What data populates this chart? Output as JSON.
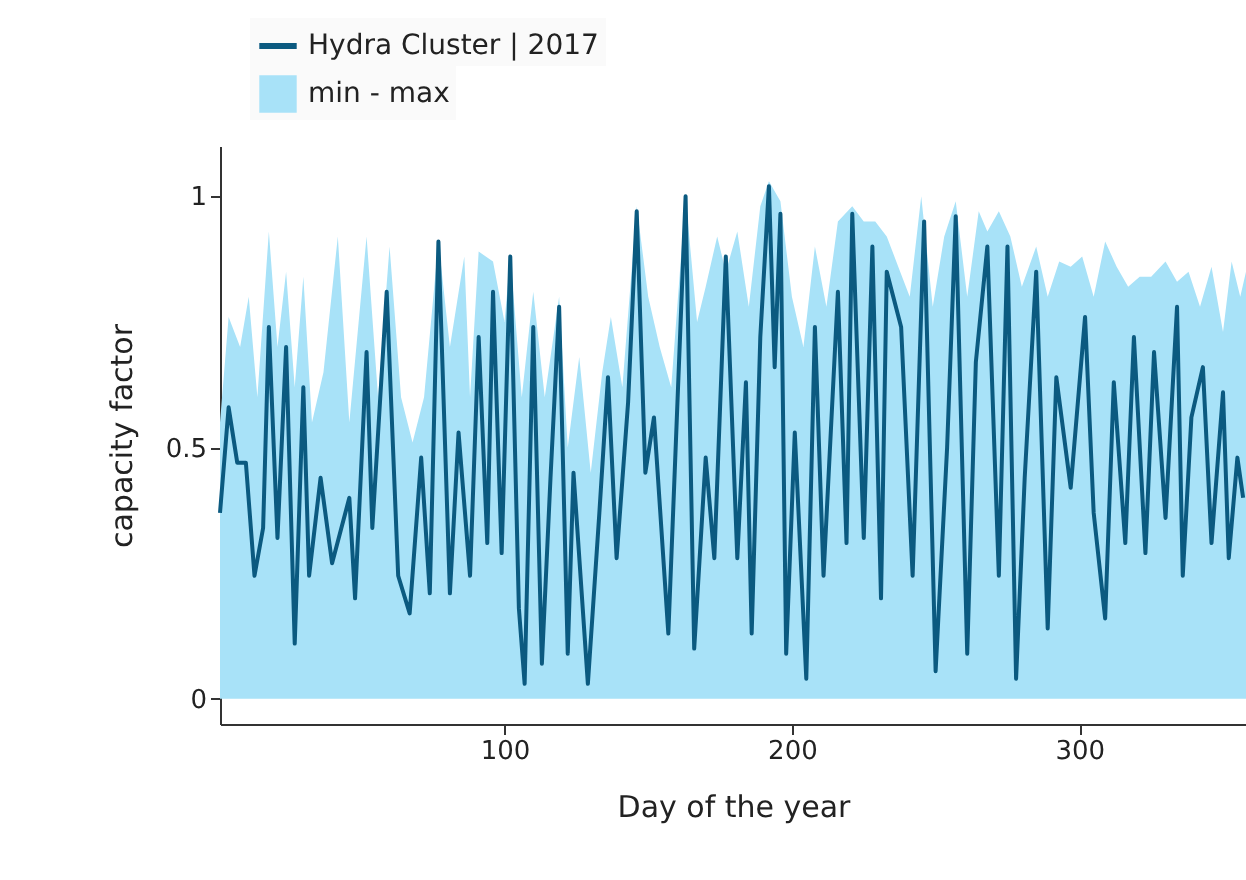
{
  "chart_data": {
    "type": "line",
    "xlabel": "Day of the year",
    "ylabel": "capacity factor",
    "xlim": [
      1,
      358
    ],
    "ylim": [
      -0.05,
      1.1
    ],
    "xticks": [
      100,
      200,
      300
    ],
    "yticks": [
      0,
      0.5,
      1
    ],
    "grid": false,
    "legend": "top left",
    "series": [
      {
        "name": "min - max",
        "type": "area",
        "color": "#a8e2f8",
        "x": [
          1,
          4,
          8,
          11,
          14,
          18,
          21,
          24,
          27,
          30,
          33,
          37,
          42,
          46,
          52,
          56,
          60,
          64,
          68,
          72,
          77,
          81,
          86,
          88,
          91,
          96,
          100,
          102,
          106,
          110,
          114,
          119,
          122,
          126,
          130,
          134,
          137,
          141,
          146,
          150,
          154,
          158,
          163,
          167,
          170,
          174,
          177,
          181,
          185,
          189,
          192,
          196,
          200,
          204,
          208,
          212,
          216,
          221,
          225,
          229,
          233,
          237,
          241,
          245,
          249,
          253,
          257,
          261,
          265,
          268,
          272,
          276,
          280,
          285,
          289,
          293,
          297,
          301,
          305,
          309,
          313,
          317,
          321,
          325,
          330,
          334,
          338,
          342,
          346,
          350,
          353,
          356,
          358
        ],
        "values": [
          0.55,
          0.76,
          0.7,
          0.8,
          0.6,
          0.93,
          0.7,
          0.85,
          0.62,
          0.84,
          0.55,
          0.65,
          0.92,
          0.55,
          0.92,
          0.6,
          0.9,
          0.6,
          0.51,
          0.6,
          0.91,
          0.7,
          0.88,
          0.6,
          0.89,
          0.87,
          0.75,
          0.88,
          0.6,
          0.81,
          0.6,
          0.8,
          0.5,
          0.68,
          0.45,
          0.65,
          0.76,
          0.62,
          0.98,
          0.8,
          0.7,
          0.62,
          1.0,
          0.75,
          0.82,
          0.92,
          0.85,
          0.93,
          0.78,
          0.98,
          1.03,
          0.99,
          0.8,
          0.7,
          0.9,
          0.78,
          0.95,
          0.98,
          0.95,
          0.95,
          0.92,
          0.86,
          0.8,
          1.0,
          0.78,
          0.92,
          0.99,
          0.8,
          0.97,
          0.93,
          0.97,
          0.92,
          0.82,
          0.9,
          0.8,
          0.87,
          0.86,
          0.88,
          0.8,
          0.91,
          0.86,
          0.82,
          0.84,
          0.84,
          0.87,
          0.83,
          0.85,
          0.78,
          0.86,
          0.73,
          0.87,
          0.8,
          0.85
        ]
      },
      {
        "name": "Hydra Cluster | 2017",
        "color": "#0b5a80",
        "x": [
          1,
          4,
          7,
          10,
          13,
          16,
          18,
          21,
          24,
          27,
          30,
          32,
          36,
          40,
          46,
          48,
          52,
          54,
          59,
          63,
          67,
          71,
          74,
          77,
          81,
          84,
          88,
          91,
          94,
          96,
          99,
          102,
          105,
          107,
          110,
          113,
          116,
          119,
          122,
          124,
          129,
          133,
          136,
          139,
          143,
          146,
          149,
          152,
          157,
          163,
          166,
          170,
          173,
          177,
          181,
          184,
          186,
          189,
          192,
          194,
          196,
          198,
          201,
          205,
          208,
          211,
          216,
          219,
          221,
          225,
          228,
          231,
          233,
          238,
          242,
          246,
          250,
          254,
          257,
          261,
          264,
          268,
          272,
          275,
          278,
          281,
          285,
          289,
          292,
          297,
          302,
          305,
          309,
          312,
          316,
          319,
          323,
          326,
          330,
          334,
          336,
          339,
          343,
          346,
          350,
          352,
          355,
          357
        ],
        "values": [
          0.37,
          0.58,
          0.47,
          0.47,
          0.245,
          0.34,
          0.74,
          0.32,
          0.7,
          0.11,
          0.62,
          0.245,
          0.44,
          0.27,
          0.4,
          0.2,
          0.69,
          0.34,
          0.81,
          0.245,
          0.17,
          0.48,
          0.21,
          0.91,
          0.21,
          0.53,
          0.245,
          0.72,
          0.31,
          0.81,
          0.29,
          0.88,
          0.18,
          0.03,
          0.74,
          0.07,
          0.44,
          0.78,
          0.09,
          0.45,
          0.03,
          0.37,
          0.64,
          0.28,
          0.59,
          0.97,
          0.45,
          0.56,
          0.13,
          1.0,
          0.1,
          0.48,
          0.28,
          0.88,
          0.28,
          0.63,
          0.13,
          0.72,
          1.02,
          0.66,
          0.965,
          0.09,
          0.53,
          0.04,
          0.74,
          0.245,
          0.81,
          0.31,
          0.965,
          0.32,
          0.9,
          0.2,
          0.85,
          0.74,
          0.245,
          0.95,
          0.055,
          0.5,
          0.96,
          0.09,
          0.67,
          0.9,
          0.245,
          0.9,
          0.04,
          0.44,
          0.85,
          0.14,
          0.64,
          0.42,
          0.76,
          0.37,
          0.16,
          0.63,
          0.31,
          0.72,
          0.29,
          0.69,
          0.36,
          0.78,
          0.245,
          0.56,
          0.66,
          0.31,
          0.61,
          0.28,
          0.48,
          0.4
        ]
      }
    ]
  }
}
